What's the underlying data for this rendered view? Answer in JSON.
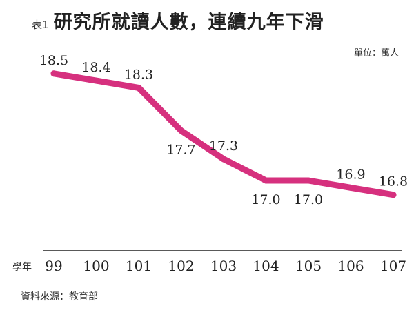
{
  "header": {
    "prefix": "表1",
    "title": "研究所就讀人數，連續九年下滑",
    "unit": "單位：萬人"
  },
  "footer": {
    "source": "資料來源：教育部"
  },
  "chart_data": {
    "type": "line",
    "xlabel": "學年",
    "ylabel": "",
    "categories": [
      "99",
      "100",
      "101",
      "102",
      "103",
      "104",
      "105",
      "106",
      "107"
    ],
    "values": [
      18.5,
      18.4,
      18.3,
      17.7,
      17.3,
      17.0,
      17.0,
      16.9,
      16.8
    ],
    "value_labels": [
      "18.5",
      "18.4",
      "18.3",
      "17.7",
      "17.3",
      "17.0",
      "17.0",
      "16.9",
      "16.8"
    ],
    "label_position": [
      "above",
      "above",
      "above",
      "below",
      "above",
      "below",
      "below",
      "above",
      "above"
    ],
    "ylim": [
      16.0,
      19.0
    ],
    "line_color": "#d6307e",
    "axis_color": "#222222",
    "grid": false,
    "legend": "none"
  }
}
